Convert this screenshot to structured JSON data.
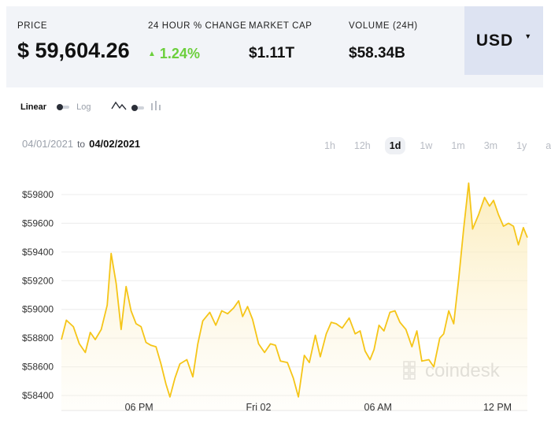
{
  "stats": {
    "price_label": "PRICE",
    "price_value": "$ 59,604.26",
    "change_label": "24 HOUR % CHANGE",
    "change_value": "1.24%",
    "change_direction": "up",
    "market_cap_label": "MARKET CAP",
    "market_cap_value": "$1.11T",
    "volume_label": "VOLUME (24H)",
    "volume_value": "$58.34B",
    "currency": "USD",
    "up_color": "#6ccf3c"
  },
  "controls": {
    "scale_linear": "Linear",
    "scale_log": "Log",
    "scale_selected": "Linear",
    "chart_type_selected": "line",
    "date_from": "04/01/2021",
    "date_to_word": "to",
    "date_to": "04/02/2021",
    "ranges": [
      "1h",
      "12h",
      "1d",
      "1w",
      "1m",
      "3m",
      "1y",
      "all"
    ],
    "selected_range": "1d"
  },
  "watermark": "coindesk",
  "chart_data": {
    "type": "area",
    "line_color": "#f5c518",
    "y_ticks": [
      "$59800",
      "$59600",
      "$59400",
      "$59200",
      "$59000",
      "$58800",
      "$58600",
      "$58400"
    ],
    "x_ticks": [
      "06 PM",
      "Fri 02",
      "06 AM",
      "12 PM"
    ],
    "y_range": [
      58360,
      59900
    ],
    "x_range_hours": [
      14.1,
      37.5
    ],
    "x_tick_hours": [
      18,
      24,
      30,
      36
    ],
    "x_unit": "hours since 00:00 04/01/2021",
    "grid": true,
    "x": [
      14.1,
      14.35,
      14.7,
      15.0,
      15.3,
      15.55,
      15.8,
      16.1,
      16.4,
      16.6,
      16.85,
      17.1,
      17.35,
      17.6,
      17.85,
      18.1,
      18.35,
      18.6,
      18.85,
      19.1,
      19.35,
      19.55,
      19.8,
      20.05,
      20.4,
      20.7,
      20.95,
      21.2,
      21.55,
      21.85,
      22.15,
      22.45,
      22.75,
      23.0,
      23.2,
      23.45,
      23.7,
      24.0,
      24.3,
      24.6,
      24.85,
      25.1,
      25.45,
      25.75,
      26.0,
      26.3,
      26.55,
      26.85,
      27.1,
      27.4,
      27.65,
      27.9,
      28.2,
      28.55,
      28.85,
      29.1,
      29.35,
      29.6,
      29.8,
      30.05,
      30.3,
      30.6,
      30.85,
      31.1,
      31.4,
      31.7,
      31.95,
      32.2,
      32.55,
      32.8,
      33.1,
      33.3,
      33.55,
      33.8,
      34.05,
      34.3,
      34.55,
      34.75,
      35.05,
      35.35,
      35.6,
      35.8,
      36.05,
      36.3,
      36.55,
      36.8,
      37.05,
      37.3,
      37.5
    ],
    "y": [
      58790,
      58925,
      58880,
      58760,
      58700,
      58840,
      58790,
      58860,
      59030,
      59390,
      59180,
      58860,
      59160,
      58990,
      58900,
      58880,
      58770,
      58750,
      58740,
      58620,
      58480,
      58390,
      58520,
      58620,
      58650,
      58530,
      58760,
      58920,
      58980,
      58890,
      58990,
      58970,
      59010,
      59060,
      58950,
      59020,
      58930,
      58760,
      58700,
      58760,
      58750,
      58640,
      58630,
      58520,
      58390,
      58680,
      58630,
      58820,
      58670,
      58830,
      58910,
      58900,
      58870,
      58940,
      58830,
      58850,
      58710,
      58650,
      58720,
      58890,
      58850,
      58980,
      58990,
      58910,
      58860,
      58740,
      58850,
      58640,
      58650,
      58600,
      58800,
      58830,
      58990,
      58900,
      59210,
      59560,
      59880,
      59560,
      59660,
      59780,
      59720,
      59760,
      59660,
      59580,
      59600,
      59580,
      59450,
      59570,
      59500
    ]
  }
}
